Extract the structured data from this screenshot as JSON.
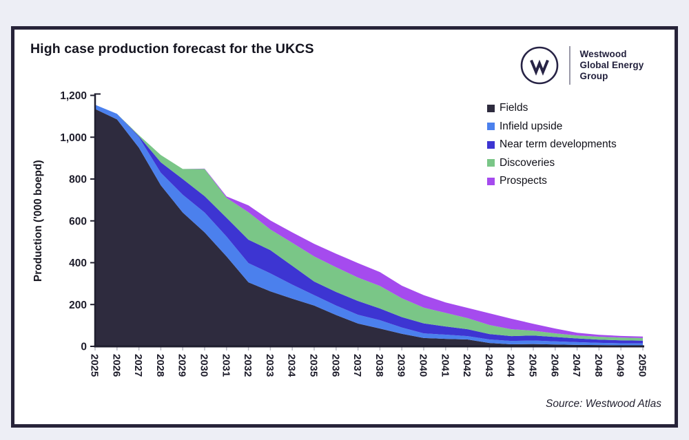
{
  "page": {
    "background": "#edeef5",
    "frame_color": "#272339"
  },
  "header": {
    "title": "High case production forecast for the UKCS",
    "logo": {
      "mark": "westwood-w-monogram",
      "brand_lines": {
        "0": "Westwood",
        "1": "Global Energy",
        "2": "Group"
      }
    }
  },
  "chart_data": {
    "type": "area",
    "stacked": true,
    "title": "High case production forecast for the UKCS",
    "xlabel": "",
    "ylabel": "Production ('000 boepd)",
    "grid": false,
    "legend_position": "top-right",
    "ylim": [
      0,
      1200
    ],
    "y_ticks": {
      "values": [
        0,
        200,
        400,
        600,
        800,
        1000,
        1200
      ],
      "labels": [
        "0",
        "200",
        "400",
        "600",
        "800",
        "1,000",
        "1,200"
      ]
    },
    "x": [
      2025,
      2026,
      2027,
      2028,
      2029,
      2030,
      2031,
      2032,
      2033,
      2034,
      2035,
      2036,
      2037,
      2038,
      2039,
      2040,
      2041,
      2042,
      2043,
      2044,
      2045,
      2046,
      2047,
      2048,
      2049,
      2050
    ],
    "series": [
      {
        "name": "Fields",
        "color": "#2e2b3e",
        "values": [
          1135,
          1085,
          950,
          770,
          640,
          545,
          430,
          306,
          263,
          228,
          195,
          150,
          109,
          85,
          60,
          40,
          36,
          33,
          16,
          10,
          11,
          9,
          7,
          6,
          5,
          5
        ]
      },
      {
        "name": "Infield upside",
        "color": "#4b80ed",
        "values": [
          20,
          27,
          50,
          60,
          85,
          95,
          95,
          92,
          86,
          67,
          50,
          45,
          42,
          40,
          30,
          22,
          20,
          16,
          17,
          16,
          17,
          15,
          13,
          11,
          10,
          9
        ]
      },
      {
        "name": "Near term developments",
        "color": "#3d35d2",
        "values": [
          0,
          0,
          5,
          50,
          75,
          78,
          90,
          112,
          111,
          90,
          65,
          65,
          66,
          56,
          50,
          48,
          39,
          33,
          26,
          23,
          24,
          21,
          18,
          15,
          14,
          13
        ]
      },
      {
        "name": "Discoveries",
        "color": "#7ac687",
        "values": [
          0,
          0,
          5,
          35,
          48,
          130,
          95,
          131,
          99,
          110,
          120,
          118,
          112,
          108,
          90,
          75,
          65,
          53,
          43,
          33,
          23,
          17,
          14,
          14,
          13,
          13
        ]
      },
      {
        "name": "Prospects",
        "color": "#a54bee",
        "values": [
          0,
          0,
          0,
          0,
          0,
          2,
          7,
          33,
          43,
          50,
          60,
          65,
          69,
          66,
          60,
          60,
          50,
          49,
          56,
          50,
          33,
          23,
          13,
          9,
          8,
          7
        ]
      }
    ]
  },
  "footer": {
    "source": "Source: Westwood Atlas"
  },
  "style": {
    "axis_color": "#1f1e2e",
    "x_tick_color": "#b9b9c2",
    "tick_label_color": "#1d1c2a"
  }
}
